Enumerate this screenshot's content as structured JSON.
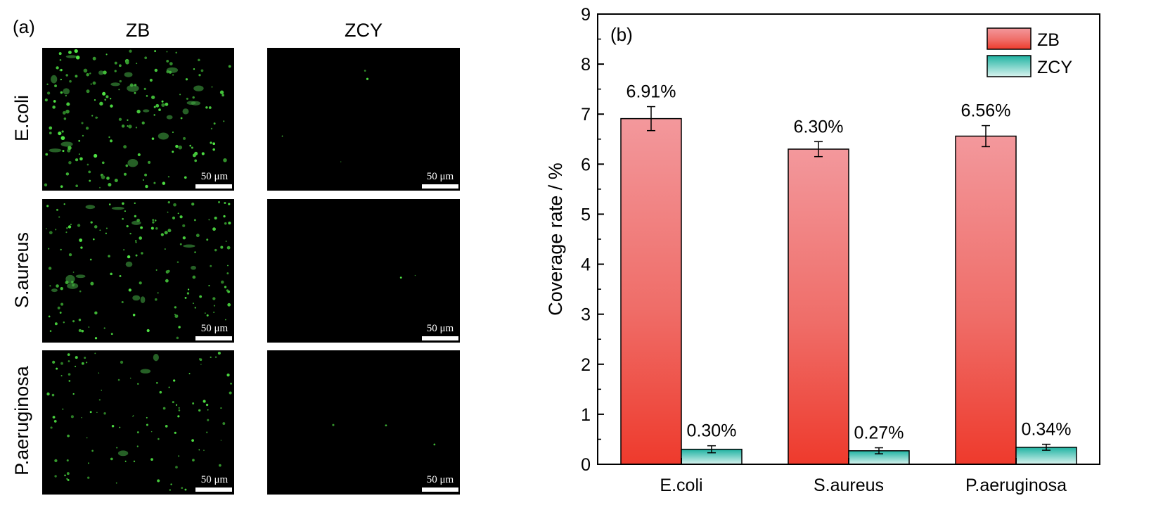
{
  "panel_a": {
    "label": "(a)",
    "columns": [
      "ZB",
      "ZCY"
    ],
    "rows": [
      "E.coli",
      "S.aureus",
      "P.aeruginosa"
    ],
    "scale_bar": "50 μm"
  },
  "chart_data": {
    "type": "bar",
    "panel_label": "(b)",
    "categories": [
      "E.coli",
      "S.aureus",
      "P.aeruginosa"
    ],
    "series": [
      {
        "name": "ZB",
        "values": [
          6.91,
          6.3,
          6.56
        ],
        "errors": [
          0.24,
          0.15,
          0.21
        ],
        "labels": [
          "6.91%",
          "6.30%",
          "6.56%"
        ],
        "color_top": "#f3989c",
        "color_bottom": "#ee3a2c"
      },
      {
        "name": "ZCY",
        "values": [
          0.3,
          0.27,
          0.34
        ],
        "errors": [
          0.07,
          0.06,
          0.06
        ],
        "labels": [
          "0.30%",
          "0.27%",
          "0.34%"
        ],
        "color_top": "#1fb3a2",
        "color_bottom": "#d9f3ef"
      }
    ],
    "ylabel": "Coverage rate / %",
    "xlabel": "",
    "ylim": [
      0,
      9
    ],
    "yticks": [
      "0",
      "1",
      "2",
      "3",
      "4",
      "5",
      "6",
      "7",
      "8",
      "9"
    ],
    "grid": false,
    "legend": "top-right"
  }
}
